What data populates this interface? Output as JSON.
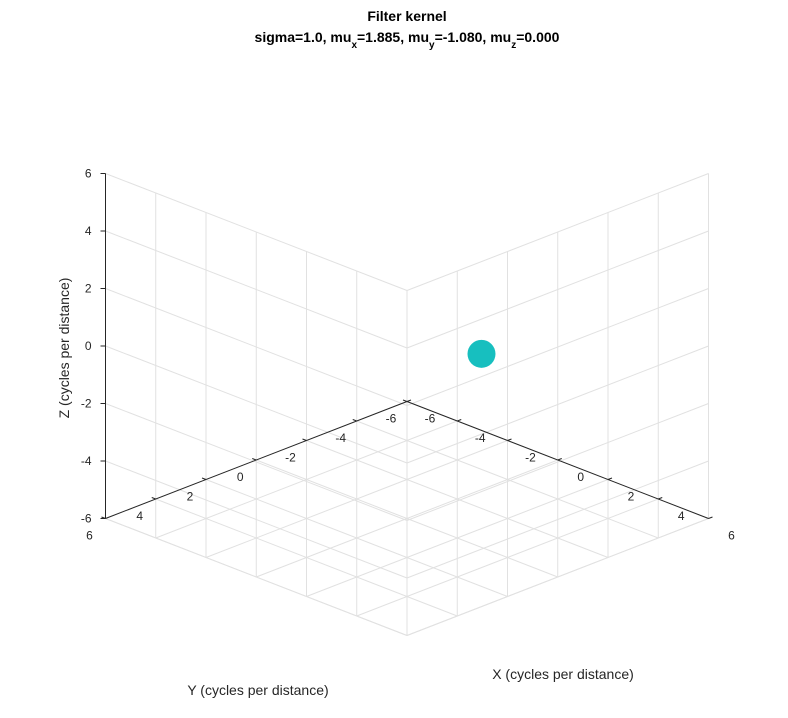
{
  "chart_data": {
    "type": "scatter",
    "title": "Filter kernel",
    "subtitle_parts": [
      {
        "text": "sigma=1.0, mu",
        "sub": false
      },
      {
        "text": "x",
        "sub": true
      },
      {
        "text": "=1.885, mu",
        "sub": false
      },
      {
        "text": "y",
        "sub": true
      },
      {
        "text": "=-1.080, mu",
        "sub": false
      },
      {
        "text": "z",
        "sub": true
      },
      {
        "text": "=0.000",
        "sub": false
      }
    ],
    "xlabel": "X (cycles per distance)",
    "ylabel": "Y (cycles per distance)",
    "zlabel": "Z (cycles per distance)",
    "xlim": [
      -6,
      6
    ],
    "ylim": [
      -6,
      6
    ],
    "zlim": [
      -6,
      6
    ],
    "x_ticks": [
      "-6",
      "-4",
      "-2",
      "0",
      "2",
      "4",
      "6"
    ],
    "y_ticks": [
      "-6",
      "-4",
      "-2",
      "0",
      "2",
      "4",
      "6"
    ],
    "z_ticks": [
      "-6",
      "-4",
      "-2",
      "0",
      "2",
      "4",
      "6"
    ],
    "grid": true,
    "view": "3d-isometric",
    "points": [
      {
        "x": 1.885,
        "y": -1.08,
        "z": 0.0,
        "color": "#17bfbf"
      }
    ],
    "marker_color": "#17bfbf"
  }
}
